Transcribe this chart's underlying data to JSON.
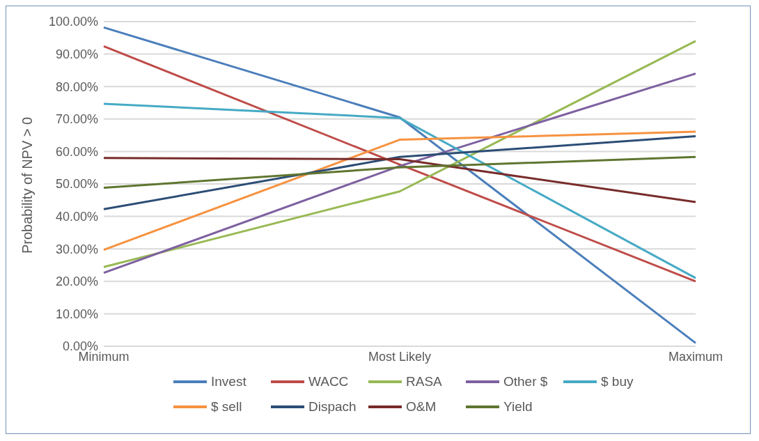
{
  "chart_data": {
    "type": "line",
    "ylabel": "Probability of NPV > 0",
    "categories": [
      "Minimum",
      "Most Likely",
      "Maximum"
    ],
    "series": [
      {
        "name": "Invest",
        "color": "#4a7ebb",
        "values": [
          98.2,
          70.5,
          1
        ]
      },
      {
        "name": "WACC",
        "color": "#be4b48",
        "values": [
          92.4,
          56,
          20
        ]
      },
      {
        "name": "RASA",
        "color": "#98b954",
        "values": [
          24.4,
          47.7,
          94
        ]
      },
      {
        "name": "Other $",
        "color": "#7d60a0",
        "values": [
          22.6,
          55.5,
          84
        ]
      },
      {
        "name": "$ buy",
        "color": "#46aac5",
        "values": [
          74.7,
          70.3,
          21
        ]
      },
      {
        "name": "$ sell",
        "color": "#f69240",
        "values": [
          29.7,
          63.6,
          66.1
        ]
      },
      {
        "name": "Dispach",
        "color": "#2c4d75",
        "values": [
          42.2,
          58.3,
          64.7
        ]
      },
      {
        "name": "O&M",
        "color": "#772c2a",
        "values": [
          58,
          57.6,
          44.4
        ]
      },
      {
        "name": "Yield",
        "color": "#5f7530",
        "values": [
          48.8,
          55.1,
          58.3
        ]
      }
    ],
    "ylim": [
      0,
      100
    ],
    "yticks": [
      {
        "value": 0,
        "label": "0.00%"
      },
      {
        "value": 10,
        "label": "10.00%"
      },
      {
        "value": 20,
        "label": "20.00%"
      },
      {
        "value": 30,
        "label": "30.00%"
      },
      {
        "value": 40,
        "label": "40.00%"
      },
      {
        "value": 50,
        "label": "50.00%"
      },
      {
        "value": 60,
        "label": "60.00%"
      },
      {
        "value": 70,
        "label": "70.00%"
      },
      {
        "value": 80,
        "label": "80.00%"
      },
      {
        "value": 90,
        "label": "90.00%"
      },
      {
        "value": 100,
        "label": "100.00%"
      }
    ],
    "grid": "y",
    "legend": "bottom",
    "marker": "none",
    "line_style": "solid"
  }
}
